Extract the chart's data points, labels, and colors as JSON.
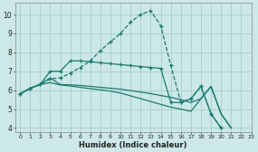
{
  "bg_color": "#cce8e8",
  "grid_color": "#aacccc",
  "line_color": "#1a7a6e",
  "xlabel": "Humidex (Indice chaleur)",
  "xlim": [
    -0.5,
    23
  ],
  "ylim": [
    3.8,
    10.6
  ],
  "yticks": [
    4,
    5,
    6,
    7,
    8,
    9,
    10
  ],
  "xticks": [
    0,
    1,
    2,
    3,
    4,
    5,
    6,
    7,
    8,
    9,
    10,
    11,
    12,
    13,
    14,
    15,
    16,
    17,
    18,
    19,
    20,
    21,
    22,
    23
  ],
  "series": {
    "dashed_main": {
      "x": [
        0,
        1,
        2,
        3,
        4,
        5,
        6,
        7,
        8,
        9,
        10,
        11,
        12,
        13,
        14,
        15,
        16,
        17,
        18,
        19,
        20,
        21,
        22
      ],
      "y": [
        5.8,
        6.1,
        6.3,
        6.6,
        6.5,
        6.7,
        7.0,
        7.5,
        7.55,
        8.1,
        8.55,
        9.0,
        9.6,
        10.0,
        10.2,
        9.4,
        7.3,
        5.35,
        5.55,
        6.2,
        4.75,
        4.0,
        null
      ],
      "style": "--",
      "marker": "+"
    },
    "upper_solid": {
      "x": [
        0,
        1,
        2,
        3,
        4,
        5,
        6,
        7,
        8,
        9,
        10,
        11,
        12,
        13,
        14,
        15,
        16,
        17,
        18,
        19,
        20,
        21,
        22
      ],
      "y": [
        5.8,
        6.1,
        6.3,
        7.0,
        7.0,
        7.55,
        7.55,
        7.5,
        7.45,
        7.4,
        7.35,
        7.3,
        7.25,
        7.2,
        7.15,
        7.1,
        5.35,
        5.35,
        5.55,
        6.2,
        4.75,
        4.0,
        null
      ],
      "style": "-",
      "marker": "+"
    },
    "mid_solid": {
      "x": [
        0,
        1,
        2,
        3,
        4,
        5,
        6,
        7,
        8,
        9,
        10,
        11,
        12,
        13,
        14,
        15,
        16,
        17,
        18,
        19,
        20,
        21,
        22
      ],
      "y": [
        5.8,
        6.1,
        6.3,
        6.65,
        6.3,
        6.3,
        6.25,
        6.2,
        6.15,
        6.1,
        6.05,
        5.98,
        5.9,
        5.82,
        5.72,
        5.62,
        5.5,
        5.35,
        5.55,
        6.2,
        4.75,
        4.0,
        null
      ],
      "style": "-",
      "marker": null
    },
    "low_solid": {
      "x": [
        0,
        1,
        2,
        3,
        4,
        5,
        6,
        7,
        8,
        9,
        10,
        11,
        12,
        13,
        14,
        15,
        16,
        17,
        18,
        19,
        20,
        21,
        22
      ],
      "y": [
        5.8,
        6.1,
        6.3,
        6.4,
        6.3,
        6.25,
        6.2,
        6.1,
        6.05,
        6.0,
        5.9,
        5.75,
        5.6,
        5.45,
        5.3,
        5.2,
        5.1,
        5.0,
        5.55,
        6.2,
        4.75,
        4.0,
        null
      ],
      "style": "-",
      "marker": null
    }
  }
}
